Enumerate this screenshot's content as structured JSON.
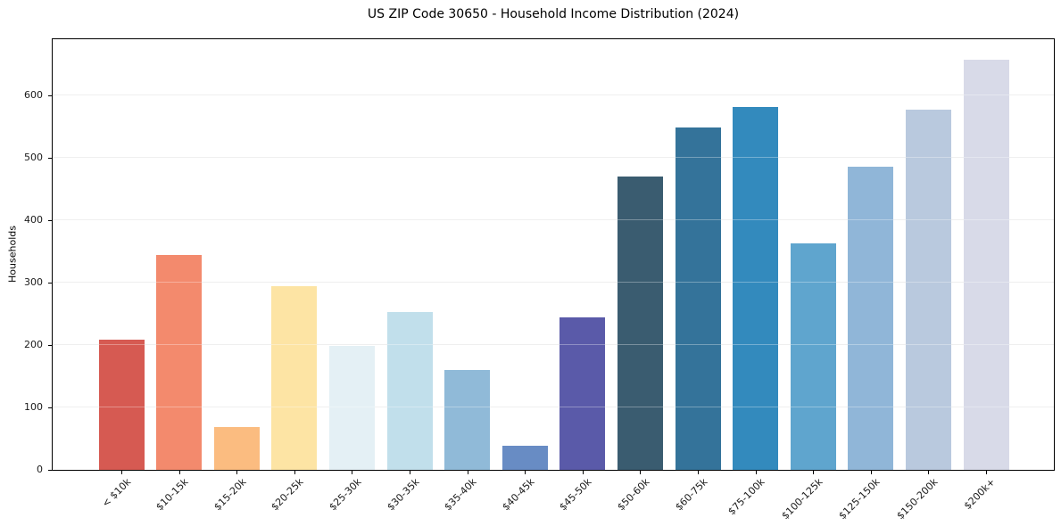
{
  "chart_data": {
    "type": "bar",
    "title": "US ZIP Code 30650 - Household Income Distribution (2024)",
    "xlabel": "",
    "ylabel": "Households",
    "categories": [
      "< $10k",
      "$10-15k",
      "$15-20k",
      "$20-25k",
      "$25-30k",
      "$30-35k",
      "$35-40k",
      "$40-45k",
      "$45-50k",
      "$50-60k",
      "$60-75k",
      "$75-100k",
      "$100-125k",
      "$125-150k",
      "$150-200k",
      "$200k+"
    ],
    "values": [
      209,
      345,
      69,
      294,
      199,
      253,
      160,
      39,
      245,
      470,
      548,
      581,
      363,
      486,
      577,
      657
    ],
    "bar_colors": [
      "#d65a52",
      "#f38a6d",
      "#fbbc80",
      "#fde4a4",
      "#e4f0f5",
      "#c1dfeb",
      "#90bad8",
      "#688cc4",
      "#5a5aa9",
      "#3a5c70",
      "#34739a",
      "#338abd",
      "#5fa5ce",
      "#90b6d8",
      "#b9c9de",
      "#d8dae8"
    ],
    "yticks": [
      0,
      100,
      200,
      300,
      400,
      500,
      600
    ],
    "ylim": [
      0,
      690
    ],
    "grid": "horizontal",
    "legend": "none",
    "background": "#ffffff",
    "spine_color": "#000000",
    "gridline_color": "#e8e8e8"
  }
}
